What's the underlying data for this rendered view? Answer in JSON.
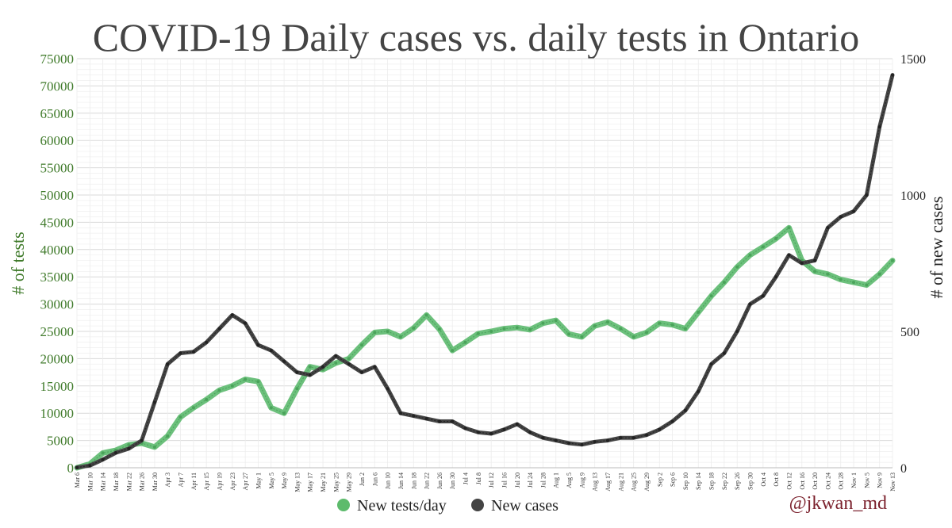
{
  "chart_data": {
    "type": "line",
    "title": "COVID-19 Daily cases vs. daily tests in Ontario",
    "ylabel_left": "# of tests",
    "ylabel_right": "# of new cases",
    "ylim_left": [
      0,
      75000
    ],
    "ylim_right": [
      0,
      1500
    ],
    "yticks_left": [
      0,
      5000,
      10000,
      15000,
      20000,
      25000,
      30000,
      35000,
      40000,
      45000,
      50000,
      55000,
      60000,
      65000,
      70000,
      75000
    ],
    "yticks_right": [
      0,
      500,
      1000,
      1500
    ],
    "xticks": [
      "Mar 6",
      "Mar 10",
      "Mar 14",
      "Mar 18",
      "Mar 22",
      "Mar 26",
      "Mar 30",
      "Apr 3",
      "Apr 7",
      "Apr 11",
      "Apr 15",
      "Apr 19",
      "Apr 23",
      "Apr 27",
      "May 1",
      "May 5",
      "May 9",
      "May 13",
      "May 17",
      "May 21",
      "May 25",
      "May 29",
      "Jun 2",
      "Jun 6",
      "Jun 10",
      "Jun 14",
      "Jun 18",
      "Jun 22",
      "Jun 26",
      "Jun 30",
      "Jul 4",
      "Jul 8",
      "Jul 12",
      "Jul 16",
      "Jul 20",
      "Jul 24",
      "Jul 28",
      "Aug 1",
      "Aug 5",
      "Aug 9",
      "Aug 13",
      "Aug 17",
      "Aug 21",
      "Aug 25",
      "Aug 29",
      "Sep 2",
      "Sep 6",
      "Sep 10",
      "Sep 14",
      "Sep 18",
      "Sep 22",
      "Sep 26",
      "Sep 30",
      "Oct 4",
      "Oct 8",
      "Oct 12",
      "Oct 16",
      "Oct 20",
      "Oct 24",
      "Oct 28",
      "Nov 1",
      "Nov 5",
      "Nov 9",
      "Nov 13"
    ],
    "grid": true,
    "legend_position": "bottom",
    "series": [
      {
        "name": "New tests/day",
        "axis": "left",
        "color": "#6cc07c",
        "values": [
          0,
          700,
          2700,
          3200,
          4200,
          4500,
          3800,
          5800,
          9300,
          11000,
          12500,
          14200,
          15000,
          16200,
          15800,
          11000,
          10000,
          14500,
          18500,
          18000,
          19200,
          20000,
          22500,
          24800,
          25000,
          24000,
          25600,
          28000,
          25400,
          21500,
          23000,
          24600,
          25000,
          25500,
          25700,
          25300,
          26500,
          27000,
          24500,
          24000,
          26000,
          26700,
          25500,
          24000,
          24800,
          26500,
          26200,
          25500,
          28500,
          31500,
          34000,
          36800,
          39000,
          40500,
          42000,
          44000,
          38000,
          36000,
          35500,
          34500,
          34000,
          33500,
          35500,
          38000
        ]
      },
      {
        "name": "New cases",
        "axis": "right",
        "color": "#444444",
        "values": [
          1,
          8,
          30,
          55,
          70,
          100,
          240,
          380,
          420,
          425,
          460,
          510,
          560,
          530,
          450,
          430,
          390,
          350,
          340,
          370,
          410,
          380,
          350,
          370,
          290,
          200,
          190,
          180,
          170,
          170,
          145,
          130,
          125,
          140,
          160,
          130,
          110,
          100,
          90,
          85,
          95,
          100,
          110,
          110,
          120,
          140,
          170,
          210,
          280,
          380,
          420,
          500,
          600,
          630,
          700,
          780,
          750,
          760,
          880,
          920,
          940,
          1000,
          1250,
          1440
        ]
      }
    ],
    "legend": [
      {
        "label": "New tests/day",
        "color": "#5dbb6c"
      },
      {
        "label": "New cases",
        "color": "#444444"
      }
    ],
    "credit": "@jkwan_md"
  }
}
